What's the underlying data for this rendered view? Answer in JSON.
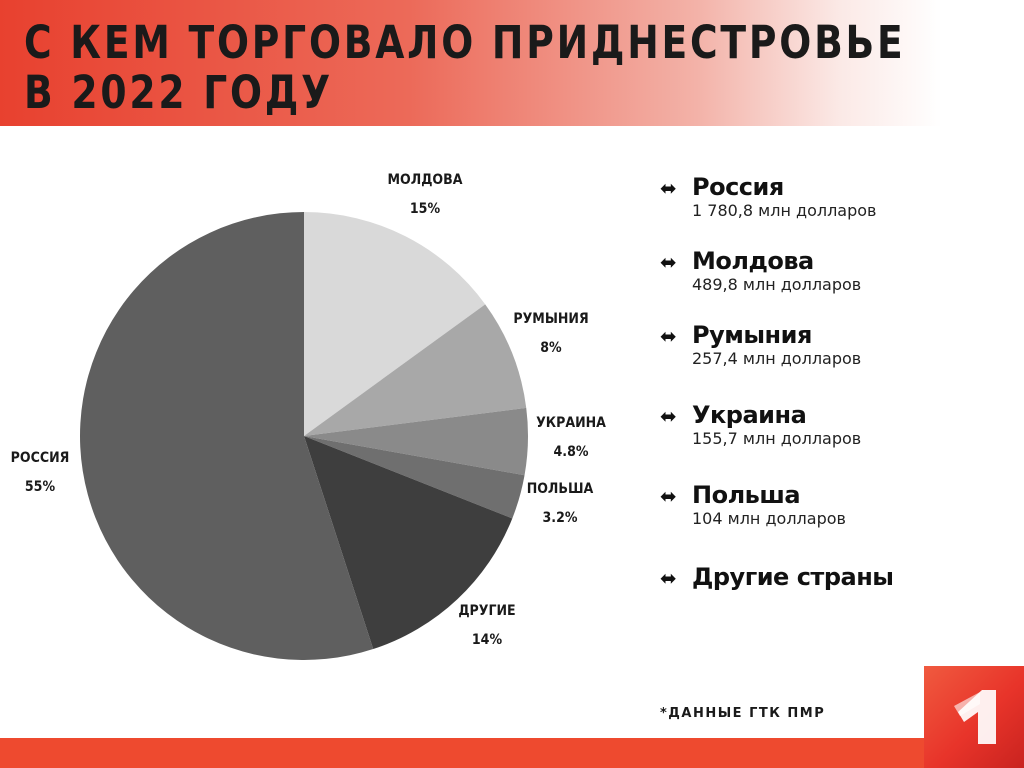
{
  "header": {
    "title": "С КЕМ ТОРГОВАЛО  ПРИДНЕСТРОВЬЕ\nВ 2022 ГОДУ"
  },
  "colors": {
    "accent": "#ee4a2f",
    "russia": "#5f5f5f",
    "moldova": "#d9d9d9",
    "romania": "#a8a8a8",
    "ukraine": "#8a8a8a",
    "poland": "#6f6f6f",
    "other": "#3e3e3e"
  },
  "chart_data": {
    "type": "pie",
    "title": "С КЕМ ТОРГОВАЛО  ПРИДНЕСТРОВЬЕ В 2022 ГОДУ",
    "slices": [
      {
        "label": "МОЛДОВА",
        "value": 15,
        "display": "15%",
        "color": "#d9d9d9"
      },
      {
        "label": "РУМЫНИЯ",
        "value": 8,
        "display": "8%",
        "color": "#a8a8a8"
      },
      {
        "label": "УКРАИНА",
        "value": 4.8,
        "display": "4.8%",
        "color": "#8a8a8a"
      },
      {
        "label": "ПОЛЬША",
        "value": 3.2,
        "display": "3.2%",
        "color": "#6f6f6f"
      },
      {
        "label": "ДРУГИЕ",
        "value": 14,
        "display": "14%",
        "color": "#3e3e3e"
      },
      {
        "label": "РОССИЯ",
        "value": 55,
        "display": "55%",
        "color": "#5f5f5f"
      }
    ],
    "start_angle_deg": 0,
    "direction": "clockwise"
  },
  "legend": {
    "items": [
      {
        "icon": "double-arrow-icon",
        "name": "Россия",
        "value": "1 780,8 млн  долларов"
      },
      {
        "icon": "double-arrow-icon",
        "name": "Молдова",
        "value": "489,8 млн  долларов"
      },
      {
        "icon": "double-arrow-icon",
        "name": "Румыния",
        "value": "257,4 млн  долларов"
      },
      {
        "icon": "double-arrow-icon",
        "name": "Украина",
        "value": "155,7 млн  долларов"
      },
      {
        "icon": "double-arrow-icon",
        "name": "Польша",
        "value": "104 млн  долларов"
      },
      {
        "icon": "double-arrow-icon",
        "name": "Другие страны",
        "value": ""
      }
    ]
  },
  "footer": {
    "source": "*ДАННЫЕ ГТК ПМР",
    "logo": "channel-one-logo"
  }
}
